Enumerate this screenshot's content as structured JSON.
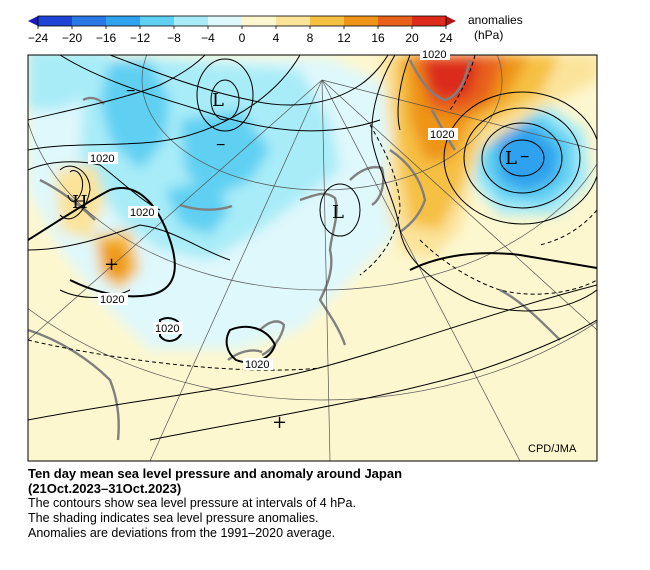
{
  "legend": {
    "title_line1": "anomalies",
    "title_line2": "(hPa)",
    "ticks": [
      "−24",
      "−20",
      "−16",
      "−12",
      "−8",
      "−4",
      "0",
      "4",
      "8",
      "12",
      "16",
      "20",
      "24"
    ],
    "colors": [
      "#1f45d6",
      "#2a78e6",
      "#2fa2ee",
      "#5fd0f2",
      "#a8ecf8",
      "#dff8fb",
      "#fdf7cf",
      "#fbe39a",
      "#f6c043",
      "#ee9418",
      "#e8611a",
      "#dc2b1a"
    ]
  },
  "map": {
    "credit": "CPD/JMA",
    "contour_labels": [
      "1020",
      "1020",
      "1020",
      "1020",
      "1020",
      "1020",
      "1020",
      "1020"
    ],
    "symbols": [
      "L",
      "L",
      "L",
      "H",
      "+",
      "+"
    ],
    "minus_signs": [
      "−",
      "−",
      "−",
      "−"
    ]
  },
  "caption": {
    "title_line1": "Ten day mean sea level pressure and anomaly around Japan",
    "title_line2": "(21Oct.2023–31Oct.2023)",
    "lines": [
      "The contours show sea level pressure at intervals of 4 hPa.",
      "The shading indicates sea level pressure anomalies.",
      "Anomalies are deviations from the 1991–2020 average."
    ]
  }
}
